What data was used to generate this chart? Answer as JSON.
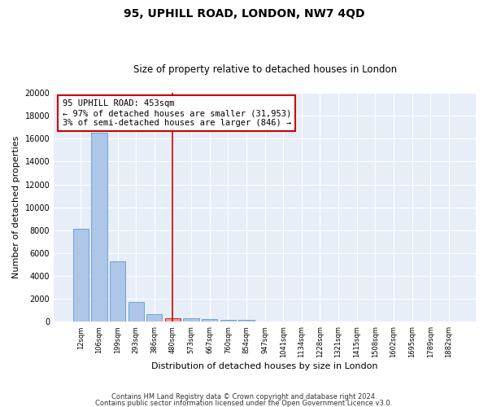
{
  "title1": "95, UPHILL ROAD, LONDON, NW7 4QD",
  "title2": "Size of property relative to detached houses in London",
  "xlabel": "Distribution of detached houses by size in London",
  "ylabel": "Number of detached properties",
  "categories": [
    "12sqm",
    "106sqm",
    "199sqm",
    "293sqm",
    "386sqm",
    "480sqm",
    "573sqm",
    "667sqm",
    "760sqm",
    "854sqm",
    "947sqm",
    "1041sqm",
    "1134sqm",
    "1228sqm",
    "1321sqm",
    "1415sqm",
    "1508sqm",
    "1602sqm",
    "1695sqm",
    "1789sqm",
    "1882sqm"
  ],
  "values": [
    8100,
    16500,
    5300,
    1750,
    700,
    350,
    320,
    270,
    190,
    150,
    60,
    40,
    25,
    15,
    10,
    8,
    6,
    5,
    4,
    3,
    2
  ],
  "bar_color": "#aec6e8",
  "bar_edge_color": "#5b9bd5",
  "highlight_bar_index": 5,
  "highlight_bar_color": "#e8a0a0",
  "highlight_bar_edge_color": "#cc0000",
  "vline_color": "#cc0000",
  "annotation_text": "95 UPHILL ROAD: 453sqm\n← 97% of detached houses are smaller (31,953)\n3% of semi-detached houses are larger (846) →",
  "annotation_box_color": "#cc0000",
  "background_color": "#e8eef8",
  "grid_color": "#ffffff",
  "fig_background": "#ffffff",
  "ylim": [
    0,
    20000
  ],
  "yticks": [
    0,
    2000,
    4000,
    6000,
    8000,
    10000,
    12000,
    14000,
    16000,
    18000,
    20000
  ],
  "footer1": "Contains HM Land Registry data © Crown copyright and database right 2024.",
  "footer2": "Contains public sector information licensed under the Open Government Licence v3.0."
}
